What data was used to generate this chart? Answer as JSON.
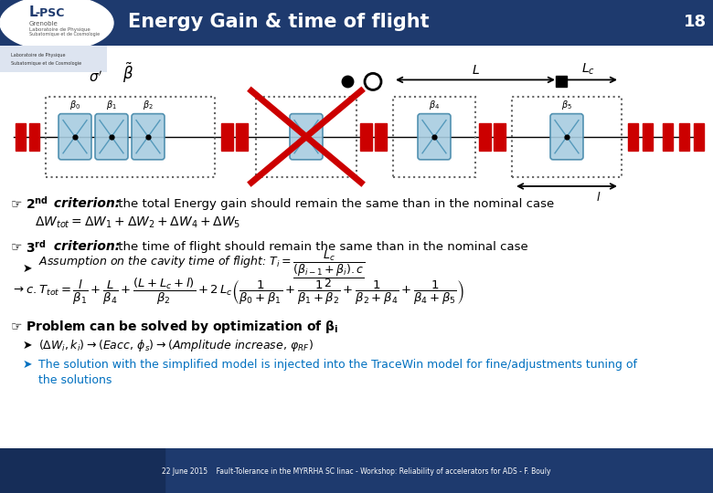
{
  "title": "Energy Gain & time of flight",
  "slide_number": "18",
  "header_bg": "#1e3a6e",
  "body_bg": "#ffffff",
  "footer_bg": "#1e3a6e",
  "footer_text": "22 June 2015    Fault-Tolerance in the MYRRHA SC linac - Workshop: Reliability of accelerators for ADS - F. Bouly",
  "red_color": "#cc0000",
  "blue_color": "#0070c0",
  "cavity_fill": "#a8cce0",
  "cavity_edge": "#4488aa"
}
